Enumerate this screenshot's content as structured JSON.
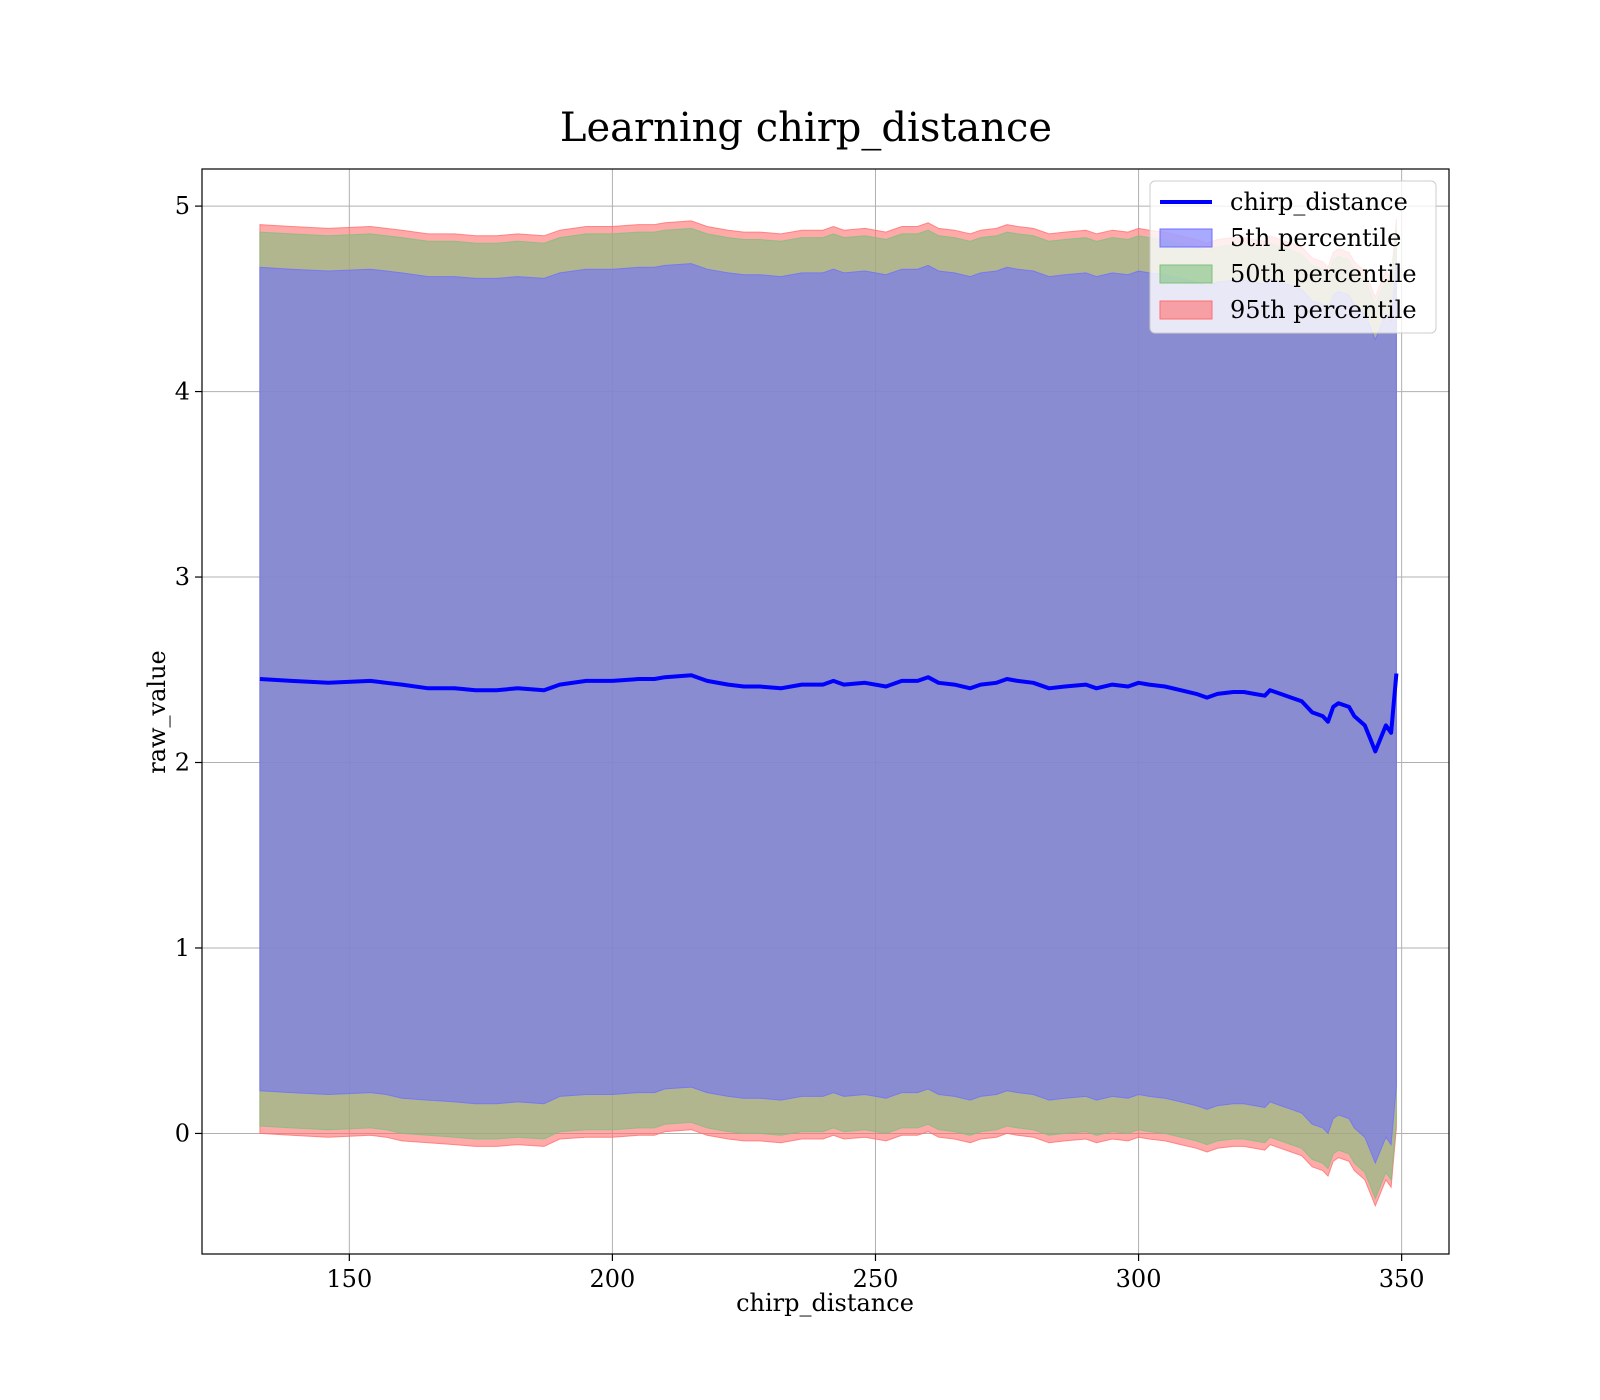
{
  "chart_data": {
    "type": "area",
    "title": "Learning chirp_distance",
    "xlabel": "chirp_distance",
    "ylabel": "raw_value",
    "xlim": [
      122,
      359
    ],
    "ylim": [
      -0.65,
      5.2
    ],
    "xticks": [
      150,
      200,
      250,
      300,
      350
    ],
    "yticks": [
      0,
      1,
      2,
      3,
      4,
      5
    ],
    "grid": true,
    "legend_position": "top-right",
    "colors": {
      "mean_line": "#0000ff",
      "band_5": "#6f6fff",
      "band_50": "#7fbf7f",
      "band_95": "#ff6f6f",
      "overlap_fill": "#a07078"
    },
    "x": [
      133,
      139,
      146,
      154,
      157,
      160,
      165,
      170,
      174,
      178,
      182,
      187,
      190,
      195,
      200,
      205,
      208,
      210,
      215,
      218,
      222,
      225,
      228,
      232,
      236,
      240,
      242,
      244,
      248,
      252,
      255,
      258,
      260,
      262,
      265,
      268,
      270,
      273,
      275,
      277,
      280,
      283,
      286,
      290,
      292,
      295,
      298,
      300,
      302,
      305,
      308,
      311,
      313,
      315,
      318,
      320,
      322,
      324,
      325,
      327,
      329,
      331,
      333,
      335,
      336,
      337,
      338,
      340,
      341,
      343,
      344,
      345,
      347,
      348,
      349
    ],
    "series": [
      {
        "name": "chirp_distance",
        "values": [
          2.45,
          2.44,
          2.43,
          2.44,
          2.43,
          2.42,
          2.4,
          2.4,
          2.39,
          2.39,
          2.4,
          2.39,
          2.42,
          2.44,
          2.44,
          2.45,
          2.45,
          2.46,
          2.47,
          2.44,
          2.42,
          2.41,
          2.41,
          2.4,
          2.42,
          2.42,
          2.44,
          2.42,
          2.43,
          2.41,
          2.44,
          2.44,
          2.46,
          2.43,
          2.42,
          2.4,
          2.42,
          2.43,
          2.45,
          2.44,
          2.43,
          2.4,
          2.41,
          2.42,
          2.4,
          2.42,
          2.41,
          2.43,
          2.42,
          2.41,
          2.39,
          2.37,
          2.35,
          2.37,
          2.38,
          2.38,
          2.37,
          2.36,
          2.39,
          2.37,
          2.35,
          2.33,
          2.27,
          2.25,
          2.22,
          2.3,
          2.32,
          2.3,
          2.25,
          2.2,
          2.13,
          2.06,
          2.2,
          2.16,
          2.48
        ]
      }
    ],
    "bands": [
      {
        "name": "5th percentile",
        "lower": [
          0.23,
          0.22,
          0.21,
          0.22,
          0.21,
          0.19,
          0.18,
          0.17,
          0.16,
          0.16,
          0.17,
          0.16,
          0.2,
          0.21,
          0.21,
          0.22,
          0.22,
          0.24,
          0.25,
          0.22,
          0.2,
          0.19,
          0.19,
          0.18,
          0.2,
          0.2,
          0.22,
          0.2,
          0.21,
          0.19,
          0.22,
          0.22,
          0.24,
          0.21,
          0.2,
          0.18,
          0.2,
          0.21,
          0.23,
          0.22,
          0.21,
          0.18,
          0.19,
          0.2,
          0.18,
          0.2,
          0.19,
          0.21,
          0.2,
          0.19,
          0.17,
          0.15,
          0.13,
          0.15,
          0.16,
          0.16,
          0.15,
          0.14,
          0.17,
          0.15,
          0.13,
          0.11,
          0.05,
          0.03,
          0.0,
          0.08,
          0.1,
          0.08,
          0.03,
          -0.02,
          -0.09,
          -0.16,
          -0.02,
          -0.06,
          0.26
        ],
        "upper": [
          4.67,
          4.66,
          4.65,
          4.66,
          4.65,
          4.64,
          4.62,
          4.62,
          4.61,
          4.61,
          4.62,
          4.61,
          4.64,
          4.66,
          4.66,
          4.67,
          4.67,
          4.68,
          4.69,
          4.66,
          4.64,
          4.63,
          4.63,
          4.62,
          4.64,
          4.64,
          4.66,
          4.64,
          4.65,
          4.63,
          4.66,
          4.66,
          4.68,
          4.65,
          4.64,
          4.62,
          4.64,
          4.65,
          4.67,
          4.66,
          4.65,
          4.62,
          4.63,
          4.64,
          4.62,
          4.64,
          4.63,
          4.65,
          4.64,
          4.63,
          4.61,
          4.59,
          4.57,
          4.59,
          4.6,
          4.6,
          4.59,
          4.58,
          4.61,
          4.59,
          4.57,
          4.55,
          4.49,
          4.47,
          4.44,
          4.52,
          4.54,
          4.52,
          4.47,
          4.42,
          4.35,
          4.28,
          4.42,
          4.38,
          4.7
        ]
      },
      {
        "name": "50th percentile",
        "lower": [
          0.04,
          0.03,
          0.02,
          0.03,
          0.02,
          0.0,
          -0.01,
          -0.02,
          -0.03,
          -0.03,
          -0.02,
          -0.03,
          0.01,
          0.02,
          0.02,
          0.03,
          0.03,
          0.05,
          0.06,
          0.03,
          0.01,
          0.0,
          0.0,
          -0.01,
          0.01,
          0.01,
          0.03,
          0.01,
          0.02,
          0.0,
          0.03,
          0.03,
          0.05,
          0.02,
          0.01,
          -0.01,
          0.01,
          0.02,
          0.04,
          0.03,
          0.02,
          -0.01,
          0.0,
          0.01,
          -0.01,
          0.01,
          0.0,
          0.02,
          0.01,
          0.0,
          -0.02,
          -0.04,
          -0.06,
          -0.04,
          -0.03,
          -0.03,
          -0.04,
          -0.05,
          -0.02,
          -0.04,
          -0.06,
          -0.08,
          -0.14,
          -0.16,
          -0.19,
          -0.11,
          -0.09,
          -0.11,
          -0.16,
          -0.21,
          -0.28,
          -0.35,
          -0.21,
          -0.25,
          0.07
        ],
        "upper": [
          4.86,
          4.85,
          4.84,
          4.85,
          4.84,
          4.83,
          4.81,
          4.81,
          4.8,
          4.8,
          4.81,
          4.8,
          4.83,
          4.85,
          4.85,
          4.86,
          4.86,
          4.87,
          4.88,
          4.85,
          4.83,
          4.82,
          4.82,
          4.81,
          4.83,
          4.83,
          4.85,
          4.83,
          4.84,
          4.82,
          4.85,
          4.85,
          4.87,
          4.84,
          4.83,
          4.81,
          4.83,
          4.84,
          4.86,
          4.85,
          4.84,
          4.81,
          4.82,
          4.83,
          4.81,
          4.83,
          4.82,
          4.84,
          4.83,
          4.82,
          4.8,
          4.78,
          4.76,
          4.78,
          4.79,
          4.79,
          4.78,
          4.77,
          4.8,
          4.78,
          4.76,
          4.74,
          4.68,
          4.66,
          4.63,
          4.71,
          4.73,
          4.71,
          4.66,
          4.61,
          4.54,
          4.47,
          4.61,
          4.57,
          4.89
        ]
      },
      {
        "name": "95th percentile",
        "lower": [
          0.0,
          -0.01,
          -0.02,
          -0.01,
          -0.02,
          -0.04,
          -0.05,
          -0.06,
          -0.07,
          -0.07,
          -0.06,
          -0.07,
          -0.03,
          -0.02,
          -0.02,
          -0.01,
          -0.01,
          0.01,
          0.02,
          -0.01,
          -0.03,
          -0.04,
          -0.04,
          -0.05,
          -0.03,
          -0.03,
          -0.01,
          -0.03,
          -0.02,
          -0.04,
          -0.01,
          -0.01,
          0.01,
          -0.02,
          -0.03,
          -0.05,
          -0.03,
          -0.02,
          0.0,
          -0.01,
          -0.02,
          -0.05,
          -0.04,
          -0.03,
          -0.05,
          -0.03,
          -0.04,
          -0.02,
          -0.03,
          -0.04,
          -0.06,
          -0.08,
          -0.1,
          -0.08,
          -0.07,
          -0.07,
          -0.08,
          -0.09,
          -0.06,
          -0.08,
          -0.1,
          -0.12,
          -0.18,
          -0.2,
          -0.23,
          -0.15,
          -0.13,
          -0.15,
          -0.2,
          -0.25,
          -0.32,
          -0.39,
          -0.25,
          -0.29,
          0.03
        ],
        "upper": [
          4.9,
          4.89,
          4.88,
          4.89,
          4.88,
          4.87,
          4.85,
          4.85,
          4.84,
          4.84,
          4.85,
          4.84,
          4.87,
          4.89,
          4.89,
          4.9,
          4.9,
          4.91,
          4.92,
          4.89,
          4.87,
          4.86,
          4.86,
          4.85,
          4.87,
          4.87,
          4.89,
          4.87,
          4.88,
          4.86,
          4.89,
          4.89,
          4.91,
          4.88,
          4.87,
          4.85,
          4.87,
          4.88,
          4.9,
          4.89,
          4.88,
          4.85,
          4.86,
          4.87,
          4.85,
          4.87,
          4.86,
          4.88,
          4.87,
          4.86,
          4.84,
          4.82,
          4.8,
          4.82,
          4.83,
          4.83,
          4.82,
          4.81,
          4.84,
          4.82,
          4.8,
          4.78,
          4.72,
          4.7,
          4.67,
          4.75,
          4.77,
          4.75,
          4.7,
          4.65,
          4.58,
          4.51,
          4.65,
          4.61,
          4.93
        ]
      }
    ]
  }
}
